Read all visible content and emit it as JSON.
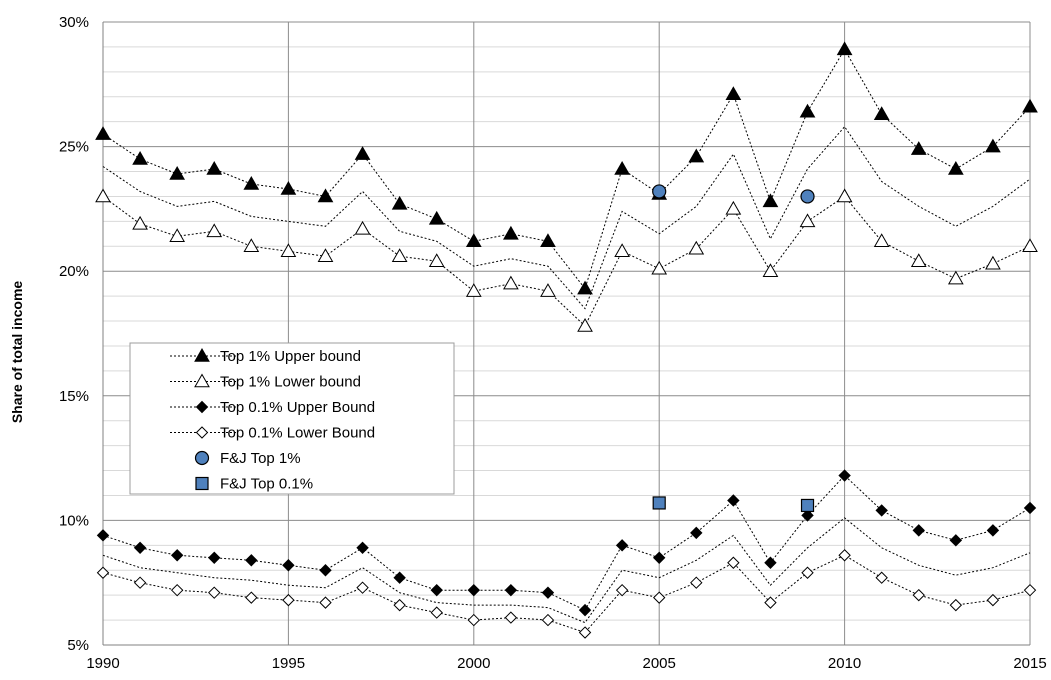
{
  "chart_data": {
    "type": "line",
    "title": "",
    "xlabel": "",
    "ylabel": "Share of total income",
    "x": [
      1990,
      1991,
      1992,
      1993,
      1994,
      1995,
      1996,
      1997,
      1998,
      1999,
      2000,
      2001,
      2002,
      2003,
      2004,
      2005,
      2006,
      2007,
      2008,
      2009,
      2010,
      2011,
      2012,
      2013,
      2014,
      2015
    ],
    "xlim": [
      1990,
      2015
    ],
    "ylim": [
      5,
      30
    ],
    "x_ticks": [
      "1990",
      "1995",
      "2000",
      "2005",
      "2010",
      "2015"
    ],
    "y_ticks": [
      "5%",
      "10%",
      "15%",
      "20%",
      "25%",
      "30%"
    ],
    "grid": {
      "major": true,
      "minor_horizontal": true
    },
    "legend_position": "center-left",
    "series": [
      {
        "name": "Top 1% Upper bound",
        "marker": "filled-triangle",
        "values": [
          25.5,
          24.5,
          23.9,
          24.1,
          23.5,
          23.3,
          23.0,
          24.7,
          22.7,
          22.1,
          21.2,
          21.5,
          21.2,
          19.3,
          24.1,
          23.1,
          24.6,
          27.1,
          22.8,
          26.4,
          28.9,
          26.3,
          24.9,
          24.1,
          25.0,
          26.6
        ]
      },
      {
        "name": "Top 1% Lower bound",
        "marker": "open-triangle",
        "values": [
          23.0,
          21.9,
          21.4,
          21.6,
          21.0,
          20.8,
          20.6,
          21.7,
          20.6,
          20.4,
          19.2,
          19.5,
          19.2,
          17.8,
          20.8,
          20.1,
          20.9,
          22.5,
          20.0,
          22.0,
          23.0,
          21.2,
          20.4,
          19.7,
          20.3,
          21.0
        ]
      },
      {
        "name": "Top 0.1% Upper Bound",
        "marker": "filled-diamond",
        "values": [
          9.4,
          8.9,
          8.6,
          8.5,
          8.4,
          8.2,
          8.0,
          8.9,
          7.7,
          7.2,
          7.2,
          7.2,
          7.1,
          6.4,
          9.0,
          8.5,
          9.5,
          10.8,
          8.3,
          10.2,
          11.8,
          10.4,
          9.6,
          9.2,
          9.6,
          10.5
        ]
      },
      {
        "name": "Top 0.1% Lower Bound",
        "marker": "open-diamond",
        "values": [
          7.9,
          7.5,
          7.2,
          7.1,
          6.9,
          6.8,
          6.7,
          7.3,
          6.6,
          6.3,
          6.0,
          6.1,
          6.0,
          5.5,
          7.2,
          6.9,
          7.5,
          8.3,
          6.7,
          7.9,
          8.6,
          7.7,
          7.0,
          6.6,
          6.8,
          7.2
        ]
      }
    ],
    "midlines": [
      {
        "values": [
          24.2,
          23.2,
          22.6,
          22.8,
          22.2,
          22.0,
          21.8,
          23.2,
          21.6,
          21.2,
          20.2,
          20.5,
          20.2,
          18.5,
          22.4,
          21.5,
          22.6,
          24.7,
          21.3,
          24.1,
          25.8,
          23.6,
          22.6,
          21.8,
          22.6,
          23.7
        ]
      },
      {
        "values": [
          8.6,
          8.1,
          7.9,
          7.7,
          7.6,
          7.4,
          7.3,
          8.1,
          7.1,
          6.7,
          6.6,
          6.6,
          6.5,
          5.9,
          8.0,
          7.7,
          8.4,
          9.4,
          7.4,
          8.9,
          10.1,
          8.9,
          8.2,
          7.8,
          8.1,
          8.7
        ]
      }
    ],
    "points": [
      {
        "name": "F&J Top 1%",
        "marker": "blue-circle",
        "color": "#4f81bd",
        "x": [
          2005,
          2009
        ],
        "y": [
          23.2,
          23.0
        ]
      },
      {
        "name": "F&J Top 0.1%",
        "marker": "blue-square",
        "color": "#4f81bd",
        "x": [
          2005,
          2009
        ],
        "y": [
          10.7,
          10.6
        ]
      }
    ]
  }
}
